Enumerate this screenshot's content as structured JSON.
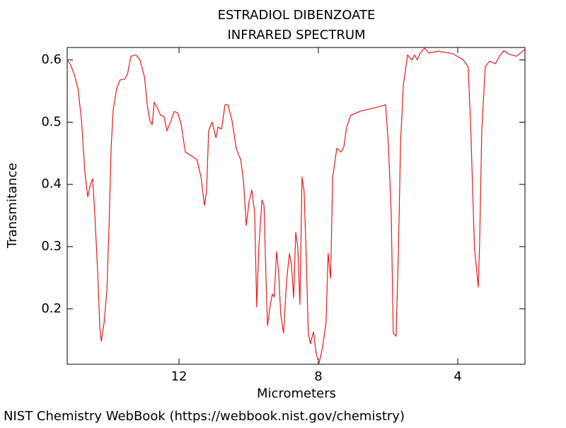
{
  "chart_data": {
    "type": "line",
    "title": "ESTRADIOL DIBENZOATE",
    "subtitle": "INFRARED SPECTRUM",
    "x_label": "Micrometers",
    "y_label": "Transmitance",
    "footer": "NIST Chemistry WebBook (https://webbook.nist.gov/chemistry)",
    "xlim": [
      15.21,
      2.07
    ],
    "ylim": [
      0.111,
      0.62
    ],
    "xticks": [
      12,
      8,
      4
    ],
    "yticks": [
      0.2,
      0.3,
      0.4,
      0.5,
      0.6
    ],
    "grid": false,
    "series": [
      {
        "color": "#e41a1c",
        "x": [
          15.21,
          15.11,
          15.01,
          14.9,
          14.8,
          14.7,
          14.62,
          14.54,
          14.48,
          14.42,
          14.34,
          14.27,
          14.23,
          14.15,
          14.07,
          14.01,
          13.95,
          13.89,
          13.79,
          13.69,
          13.56,
          13.48,
          13.38,
          13.24,
          13.12,
          12.99,
          12.91,
          12.83,
          12.77,
          12.71,
          12.63,
          12.53,
          12.43,
          12.35,
          12.26,
          12.14,
          12.04,
          11.94,
          11.82,
          11.65,
          11.49,
          11.37,
          11.27,
          11.21,
          11.15,
          11.05,
          10.94,
          10.88,
          10.78,
          10.68,
          10.6,
          10.48,
          10.36,
          10.23,
          10.15,
          10.07,
          9.99,
          9.91,
          9.83,
          9.77,
          9.71,
          9.62,
          9.56,
          9.5,
          9.46,
          9.38,
          9.32,
          9.27,
          9.2,
          9.14,
          9.08,
          9.0,
          8.91,
          8.83,
          8.77,
          8.71,
          8.65,
          8.59,
          8.53,
          8.47,
          8.41,
          8.35,
          8.29,
          8.23,
          8.14,
          8.06,
          7.98,
          7.88,
          7.78,
          7.72,
          7.65,
          7.59,
          7.47,
          7.35,
          7.27,
          7.19,
          7.07,
          6.78,
          6.38,
          6.07,
          5.99,
          5.91,
          5.85,
          5.77,
          5.7,
          5.64,
          5.56,
          5.44,
          5.32,
          5.24,
          5.16,
          5.08,
          4.95,
          4.83,
          4.55,
          4.14,
          3.84,
          3.7,
          3.62,
          3.52,
          3.46,
          3.41,
          3.37,
          3.31,
          3.21,
          3.09,
          2.92,
          2.8,
          2.68,
          2.52,
          2.31,
          2.07
        ],
        "values": [
          0.6,
          0.592,
          0.577,
          0.554,
          0.503,
          0.418,
          0.38,
          0.401,
          0.409,
          0.355,
          0.264,
          0.167,
          0.148,
          0.178,
          0.23,
          0.332,
          0.458,
          0.52,
          0.554,
          0.568,
          0.569,
          0.577,
          0.606,
          0.608,
          0.6,
          0.572,
          0.526,
          0.501,
          0.496,
          0.532,
          0.524,
          0.511,
          0.509,
          0.486,
          0.498,
          0.517,
          0.515,
          0.497,
          0.452,
          0.446,
          0.44,
          0.412,
          0.366,
          0.389,
          0.486,
          0.5,
          0.475,
          0.492,
          0.489,
          0.528,
          0.528,
          0.503,
          0.458,
          0.44,
          0.406,
          0.334,
          0.372,
          0.391,
          0.355,
          0.203,
          0.298,
          0.375,
          0.366,
          0.241,
          0.173,
          0.207,
          0.224,
          0.219,
          0.292,
          0.258,
          0.19,
          0.161,
          0.247,
          0.289,
          0.269,
          0.218,
          0.323,
          0.298,
          0.207,
          0.412,
          0.389,
          0.287,
          0.161,
          0.144,
          0.163,
          0.127,
          0.113,
          0.138,
          0.178,
          0.289,
          0.249,
          0.412,
          0.458,
          0.452,
          0.46,
          0.492,
          0.511,
          0.518,
          0.523,
          0.528,
          0.463,
          0.355,
          0.161,
          0.156,
          0.298,
          0.469,
          0.56,
          0.608,
          0.6,
          0.608,
          0.6,
          0.611,
          0.619,
          0.611,
          0.614,
          0.61,
          0.6,
          0.589,
          0.48,
          0.298,
          0.264,
          0.235,
          0.309,
          0.486,
          0.589,
          0.598,
          0.594,
          0.606,
          0.615,
          0.609,
          0.606,
          0.617
        ]
      }
    ]
  }
}
